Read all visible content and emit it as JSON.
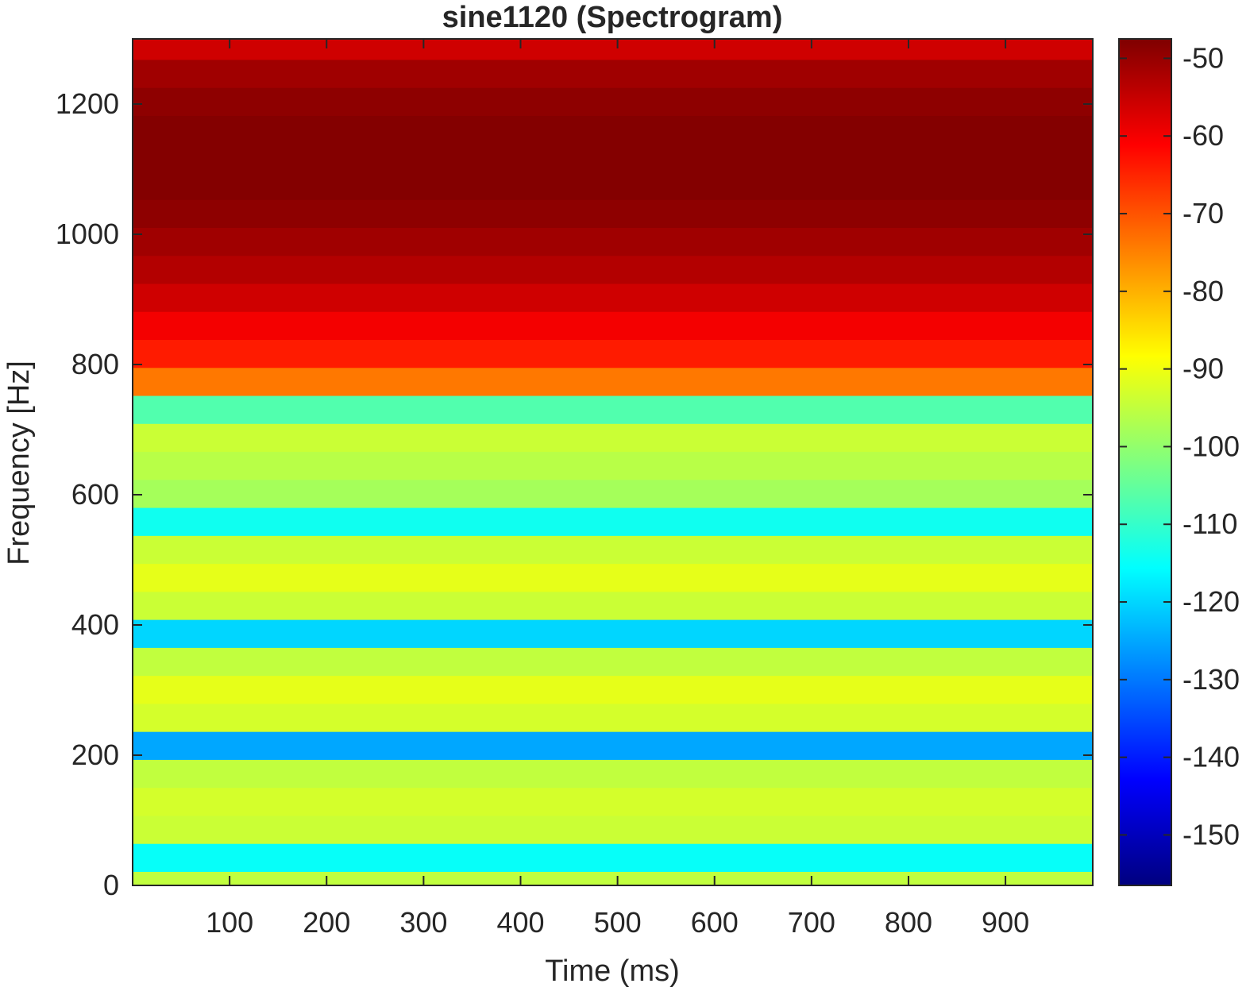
{
  "chart_data": {
    "type": "heatmap",
    "title": "sine1120 (Spectrogram)",
    "xlabel": "Time (ms)",
    "ylabel": "Frequency [Hz]",
    "xlim": [
      0,
      990
    ],
    "ylim": [
      0,
      1300
    ],
    "x_ticks": [
      100,
      200,
      300,
      400,
      500,
      600,
      700,
      800,
      900
    ],
    "y_ticks": [
      0,
      200,
      400,
      600,
      800,
      1000,
      1200
    ],
    "colormap": "jet",
    "colorbar": {
      "clim": [
        -156.5,
        -47.5
      ],
      "ticks": [
        -50,
        -60,
        -70,
        -80,
        -90,
        -100,
        -110,
        -120,
        -130,
        -140,
        -150
      ]
    },
    "bin_hz": 43,
    "rows_low_to_high_db": [
      -95,
      -115,
      -94,
      -93,
      -95,
      -125,
      -93,
      -91,
      -95,
      -120,
      -94,
      -91,
      -94,
      -114,
      -98,
      -96,
      -94,
      -107,
      -74,
      -64,
      -60,
      -56,
      -53,
      -51,
      -49,
      -48,
      -48,
      -48,
      -49,
      -51,
      -56
    ]
  }
}
